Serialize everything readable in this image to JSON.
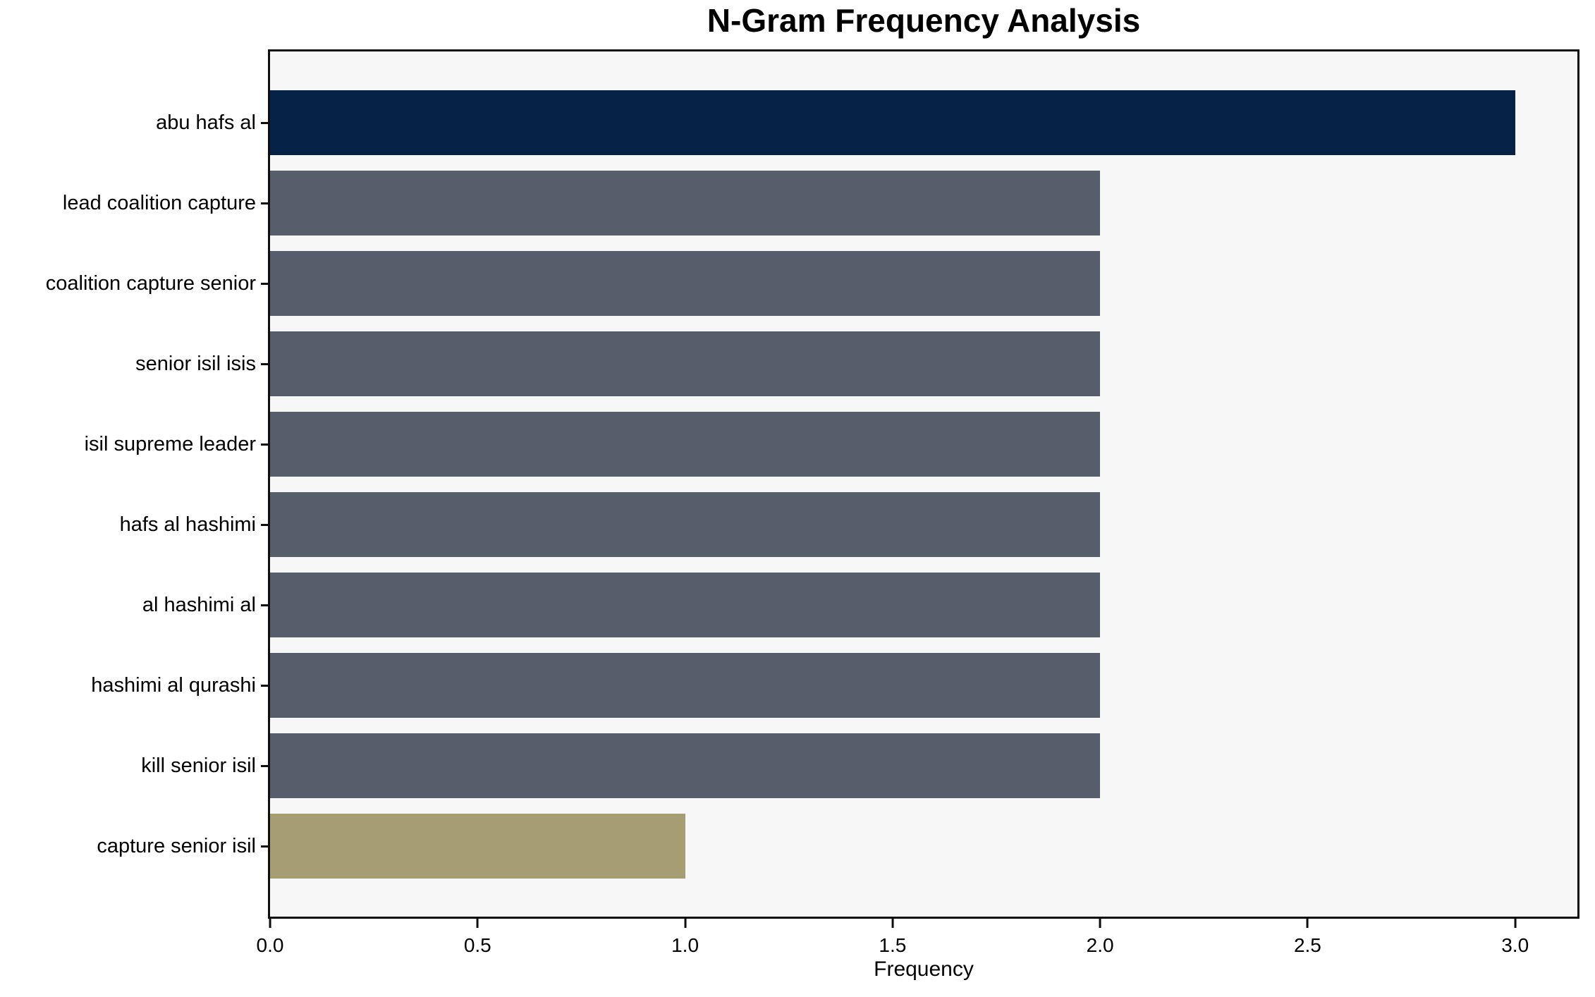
{
  "chart_data": {
    "type": "bar",
    "orientation": "horizontal",
    "title": "N-Gram Frequency Analysis",
    "xlabel": "Frequency",
    "ylabel": "",
    "categories": [
      "abu hafs al",
      "lead coalition capture",
      "coalition capture senior",
      "senior isil isis",
      "isil supreme leader",
      "hafs al hashimi",
      "al hashimi al",
      "hashimi al qurashi",
      "kill senior isil",
      "capture senior isil"
    ],
    "values": [
      3,
      2,
      2,
      2,
      2,
      2,
      2,
      2,
      2,
      1
    ],
    "bar_colors": [
      "#062347",
      "#565d6b",
      "#565d6b",
      "#565d6b",
      "#565d6b",
      "#565d6b",
      "#565d6b",
      "#565d6b",
      "#565d6b",
      "#a79d72"
    ],
    "xlim": [
      0,
      3.15
    ],
    "xtick_values": [
      0,
      0.5,
      1,
      1.5,
      2,
      2.5,
      3
    ],
    "xtick_labels": [
      "0.0",
      "0.5",
      "1.0",
      "1.5",
      "2.0",
      "2.5",
      "3.0"
    ],
    "grid": false,
    "legend": null,
    "colors": {
      "highlight_max": "#062347",
      "default_bar": "#565d6b",
      "highlight_min": "#a79d72",
      "plot_background": "#f7f7f8",
      "figure_background": "#ffffff",
      "spine": "#0e0e0e",
      "text": "#000000"
    }
  }
}
